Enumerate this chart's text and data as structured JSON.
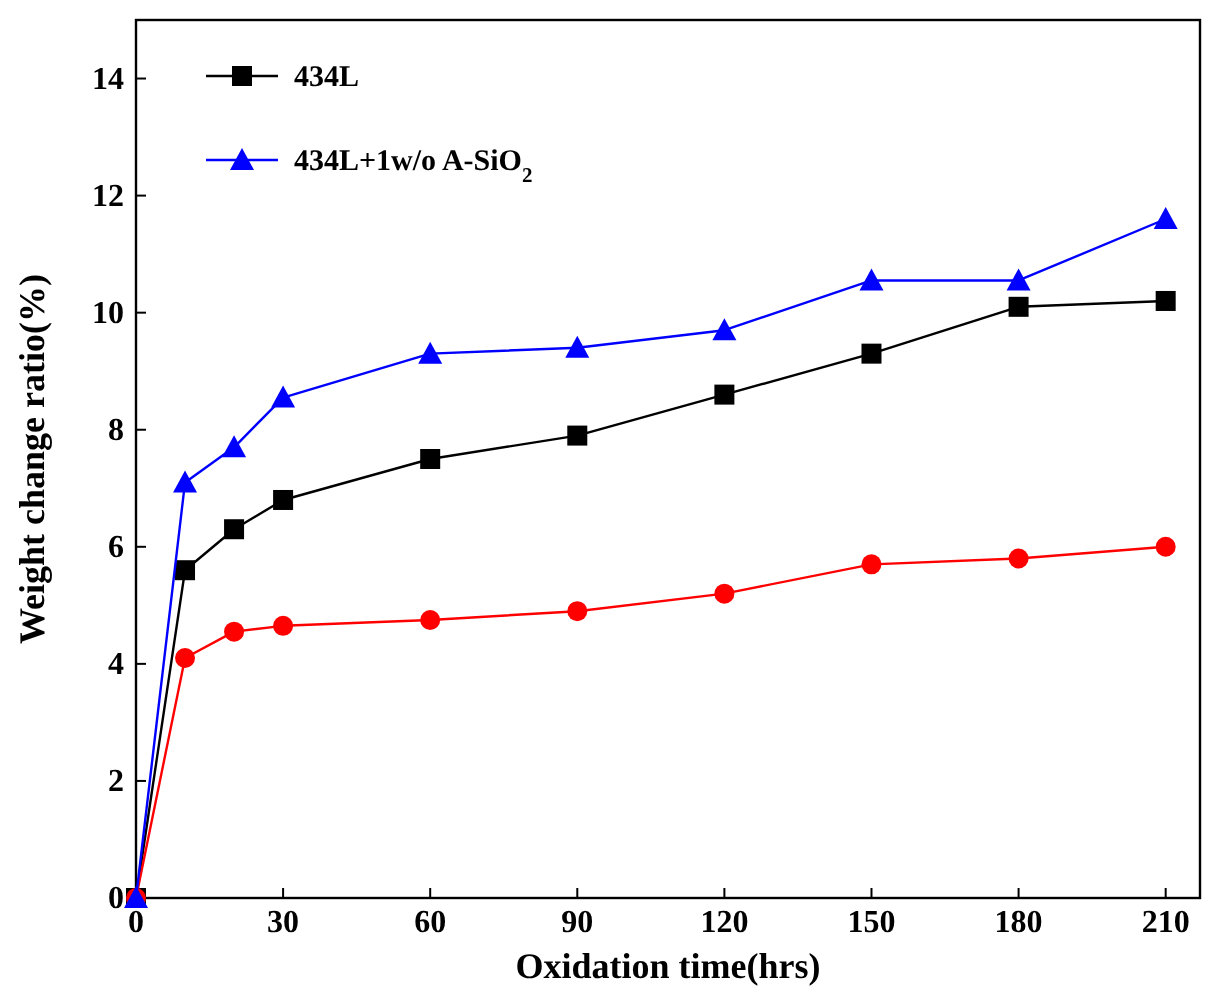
{
  "chart_data": {
    "type": "line",
    "xlabel": "Oxidation time(hrs)",
    "ylabel": "Weight change ratio(%)",
    "x": [
      0,
      10,
      20,
      30,
      60,
      90,
      120,
      150,
      180,
      210
    ],
    "series": [
      {
        "name": "434L",
        "color": "#000000",
        "marker": "square",
        "values": [
          0,
          5.6,
          6.3,
          6.8,
          7.5,
          7.9,
          8.6,
          9.3,
          10.1,
          10.2
        ]
      },
      {
        "color": "#ff0000",
        "marker": "circle",
        "values": [
          0,
          4.1,
          4.55,
          4.65,
          4.75,
          4.9,
          5.2,
          5.7,
          5.8,
          6.0
        ]
      },
      {
        "name": "434L+1w/o A-SiO$_{2}$",
        "color": "#0000ff",
        "marker": "triangle",
        "values": [
          0,
          7.1,
          7.7,
          8.55,
          9.3,
          9.4,
          9.7,
          10.55,
          10.55,
          11.6
        ]
      }
    ],
    "xlim": [
      0,
      217
    ],
    "xticks": [
      0,
      30,
      60,
      90,
      120,
      150,
      180,
      210
    ],
    "ylim": [
      0,
      15
    ],
    "yticks": [
      0,
      2,
      4,
      6,
      8,
      10,
      12,
      14
    ],
    "legend": "top left",
    "grid": false
  }
}
